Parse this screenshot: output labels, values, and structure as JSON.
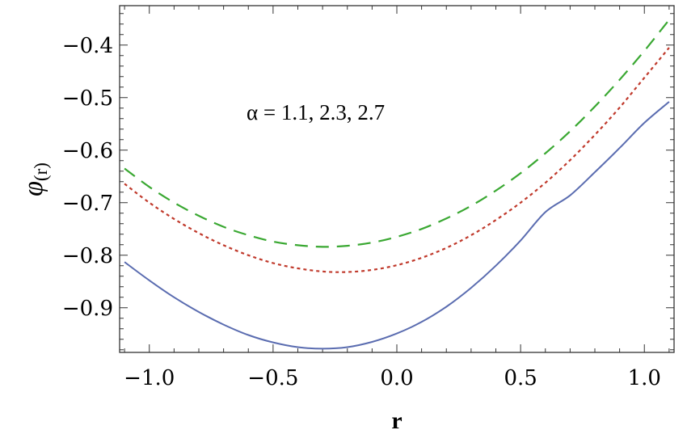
{
  "chart_data": {
    "type": "line",
    "xlabel": "r",
    "ylabel_symbol": "φ",
    "ylabel_subscript": "(r)",
    "annotation": "α = 1.1, 2.3, 2.7",
    "xlim": [
      -1.12,
      1.12
    ],
    "ylim": [
      -0.985,
      -0.325
    ],
    "x_ticks": [
      -1.0,
      -0.5,
      0.0,
      0.5,
      1.0
    ],
    "x_tick_labels": [
      "−1.0",
      "−0.5",
      "0.0",
      "0.5",
      "1.0"
    ],
    "y_ticks": [
      -0.9,
      -0.8,
      -0.7,
      -0.6,
      -0.5,
      -0.4
    ],
    "y_tick_labels": [
      "−0.9",
      "−0.8",
      "−0.7",
      "−0.6",
      "−0.5",
      "−0.4"
    ],
    "grid": false,
    "legend": "none",
    "series": [
      {
        "style": "solid",
        "color": "#5a6cb0",
        "x": [
          -1.1,
          -1.0,
          -0.9,
          -0.8,
          -0.7,
          -0.6,
          -0.5,
          -0.4,
          -0.3,
          -0.2,
          -0.1,
          0.0,
          0.1,
          0.2,
          0.3,
          0.4,
          0.5,
          0.6,
          0.7,
          0.8,
          0.9,
          1.0,
          1.1
        ],
        "y": [
          -0.813,
          -0.848,
          -0.88,
          -0.908,
          -0.932,
          -0.952,
          -0.966,
          -0.975,
          -0.978,
          -0.975,
          -0.965,
          -0.949,
          -0.927,
          -0.898,
          -0.862,
          -0.82,
          -0.772,
          -0.718,
          -0.686,
          -0.642,
          -0.596,
          -0.548,
          -0.508
        ]
      },
      {
        "style": "dotted",
        "color": "#c0392b",
        "x": [
          -1.1,
          -1.0,
          -0.9,
          -0.8,
          -0.7,
          -0.6,
          -0.5,
          -0.4,
          -0.3,
          -0.2,
          -0.1,
          0.0,
          0.1,
          0.2,
          0.3,
          0.4,
          0.5,
          0.6,
          0.7,
          0.8,
          0.9,
          1.0,
          1.1
        ],
        "y": [
          -0.664,
          -0.7,
          -0.731,
          -0.758,
          -0.781,
          -0.8,
          -0.815,
          -0.825,
          -0.831,
          -0.832,
          -0.828,
          -0.819,
          -0.805,
          -0.786,
          -0.762,
          -0.733,
          -0.7,
          -0.662,
          -0.619,
          -0.571,
          -0.519,
          -0.462,
          -0.405
        ]
      },
      {
        "style": "dashed",
        "color": "#3aa832",
        "x": [
          -1.1,
          -1.0,
          -0.9,
          -0.8,
          -0.7,
          -0.6,
          -0.5,
          -0.4,
          -0.3,
          -0.2,
          -0.1,
          0.0,
          0.1,
          0.2,
          0.3,
          0.4,
          0.5,
          0.6,
          0.7,
          0.8,
          0.9,
          1.0,
          1.1
        ],
        "y": [
          -0.635,
          -0.67,
          -0.7,
          -0.725,
          -0.746,
          -0.762,
          -0.774,
          -0.781,
          -0.784,
          -0.782,
          -0.776,
          -0.765,
          -0.75,
          -0.73,
          -0.706,
          -0.677,
          -0.644,
          -0.606,
          -0.564,
          -0.517,
          -0.466,
          -0.411,
          -0.352
        ]
      }
    ]
  }
}
